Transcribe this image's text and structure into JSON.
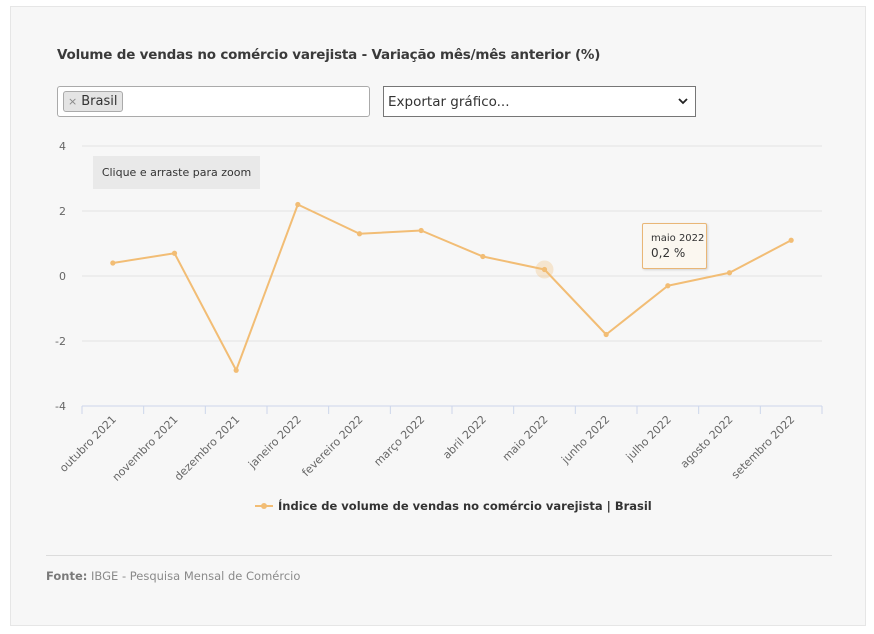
{
  "header": {
    "title": "Volume de vendas no comércio varejista - Variação mês/mês anterior (%)"
  },
  "filters": {
    "selected_tag": "Brasil",
    "tag_remove_glyph": "×",
    "export_label": "Exportar gráfico..."
  },
  "zoom_hint": "Clique e arraste para zoom",
  "tooltip": {
    "period": "maio 2022",
    "value": "0,2 %"
  },
  "colors": {
    "series": "#f2bd75",
    "grid": "#e3e3e3",
    "axis": "#ccd6eb"
  },
  "chart_data": {
    "type": "line",
    "categories": [
      "outubro 2021",
      "novembro 2021",
      "dezembro 2021",
      "janeiro 2022",
      "fevereiro 2022",
      "março 2022",
      "abril 2022",
      "maio 2022",
      "junho 2022",
      "julho 2022",
      "agosto 2022",
      "setembro 2022"
    ],
    "series": [
      {
        "name": "Índice de volume de vendas no comércio varejista | Brasil",
        "values": [
          0.4,
          0.7,
          -2.9,
          2.2,
          1.3,
          1.4,
          0.6,
          0.2,
          -1.8,
          -0.3,
          0.1,
          1.1
        ]
      }
    ],
    "ylim": [
      -4,
      4
    ],
    "yticks": [
      4,
      2,
      0,
      -2,
      -4
    ],
    "ytick_labels": [
      "4",
      "2",
      "0",
      "-2",
      "-4"
    ],
    "highlighted_index": 7,
    "grid": true,
    "legend": "bottom-center"
  },
  "footer": {
    "source_label": "Fonte:",
    "source_text": "IBGE - Pesquisa Mensal de Comércio"
  }
}
